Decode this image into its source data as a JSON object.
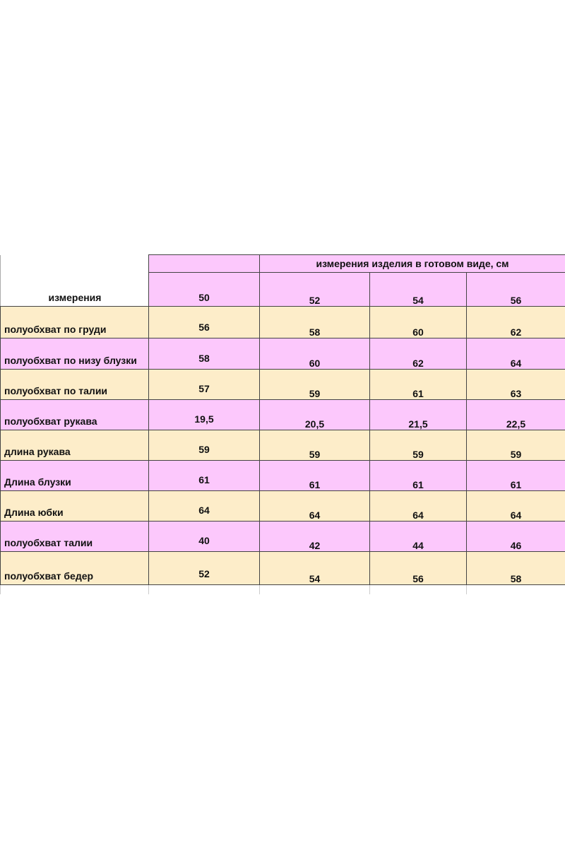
{
  "table": {
    "caption": "измерения изделия в готовом виде, см",
    "row_header": "измерения",
    "sizes": [
      "50",
      "52",
      "54",
      "56"
    ],
    "rows": [
      {
        "label": "полуобхват по груди",
        "values": [
          "56",
          "58",
          "60",
          "62"
        ],
        "color": "#fdedc9"
      },
      {
        "label": "полуобхват по низу блузки",
        "values": [
          "58",
          "60",
          "62",
          "64"
        ],
        "color": "#fcc8fc"
      },
      {
        "label": "полуобхват по талии",
        "values": [
          "57",
          "59",
          "61",
          "63"
        ],
        "color": "#fdedc9"
      },
      {
        "label": "полуобхват рукава",
        "values": [
          "19,5",
          "20,5",
          "21,5",
          "22,5"
        ],
        "color": "#fcc8fc"
      },
      {
        "label": "длина рукава",
        "values": [
          "59",
          "59",
          "59",
          "59"
        ],
        "color": "#fdedc9"
      },
      {
        "label": "Длина блузки",
        "values": [
          "61",
          "61",
          "61",
          "61"
        ],
        "color": "#fcc8fc"
      },
      {
        "label": "Длина юбки",
        "values": [
          "64",
          "64",
          "64",
          "64"
        ],
        "color": "#fdedc9"
      },
      {
        "label": "полуобхват талии",
        "values": [
          "40",
          "42",
          "44",
          "46"
        ],
        "color": "#fcc8fc"
      },
      {
        "label": "полуобхват бедер",
        "values": [
          "52",
          "54",
          "56",
          "58"
        ],
        "color": "#fdedc9"
      }
    ]
  }
}
